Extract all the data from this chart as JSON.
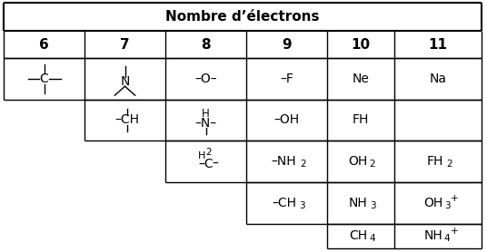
{
  "title": "Nombre d’électrons",
  "col_headers": [
    "6",
    "7",
    "8",
    "9",
    "10",
    "11"
  ],
  "background": "#ffffff",
  "figsize": [
    5.36,
    2.78
  ],
  "dpi": 100,
  "title_fontsize": 11,
  "header_fontsize": 11,
  "cell_fontsize": 10,
  "sub_fontsize": 7.5
}
